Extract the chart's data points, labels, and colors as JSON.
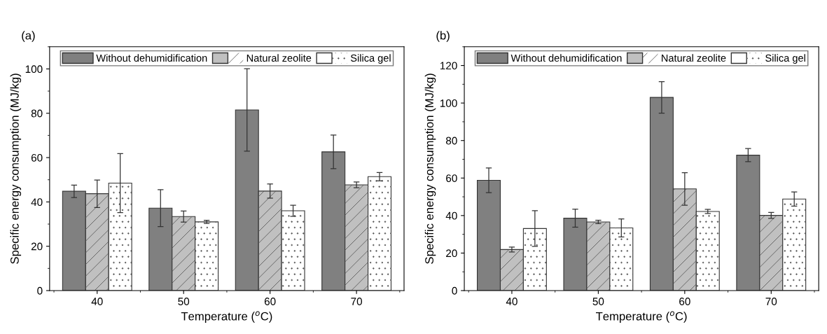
{
  "chart_data": [
    {
      "type": "bar",
      "annotations": [
        "(a)"
      ],
      "xlabel": "Temperature ($^{o}$C)",
      "ylabel": "Specific energy consumption (MJ/kg)",
      "categories": [
        "40",
        "50",
        "60",
        "70"
      ],
      "ylim": [
        0,
        110
      ],
      "yticks": [
        0,
        20,
        40,
        60,
        80,
        100
      ],
      "legend": "top",
      "grid": false,
      "series": [
        {
          "name": "Without dehumidification",
          "color": "#808080",
          "values": [
            44.8,
            37.2,
            81.5,
            62.6
          ],
          "errors": [
            2.8,
            8.3,
            18.6,
            7.6
          ]
        },
        {
          "name": "Natural zeolite",
          "color": "#c0c0c0",
          "values": [
            43.7,
            33.4,
            44.9,
            47.7
          ],
          "errors": [
            6.2,
            2.5,
            3.2,
            1.3
          ]
        },
        {
          "name": "Silica gel",
          "color": "#ffffff",
          "values": [
            48.5,
            31.0,
            36.0,
            51.4
          ],
          "errors": [
            13.3,
            0.7,
            2.5,
            1.9
          ]
        }
      ]
    },
    {
      "type": "bar",
      "annotations": [
        "(b)"
      ],
      "xlabel": "Temperature ($^{o}$C)",
      "ylabel": "Specific energy consumption (MJ/kg)",
      "categories": [
        "40",
        "50",
        "60",
        "70"
      ],
      "ylim": [
        0,
        130
      ],
      "yticks": [
        0,
        20,
        40,
        60,
        80,
        100,
        120
      ],
      "legend": "top",
      "grid": false,
      "series": [
        {
          "name": "Without dehumidification",
          "color": "#808080",
          "values": [
            58.8,
            38.6,
            103.0,
            72.2
          ],
          "errors": [
            6.6,
            4.8,
            8.4,
            3.5
          ]
        },
        {
          "name": "Natural zeolite",
          "color": "#c0c0c0",
          "values": [
            21.9,
            36.6,
            54.2,
            40.1
          ],
          "errors": [
            1.3,
            0.9,
            8.7,
            1.6
          ]
        },
        {
          "name": "Silica gel",
          "color": "#ffffff",
          "values": [
            33.1,
            33.4,
            42.2,
            48.8
          ],
          "errors": [
            9.5,
            4.8,
            1.1,
            3.8
          ]
        }
      ]
    }
  ]
}
